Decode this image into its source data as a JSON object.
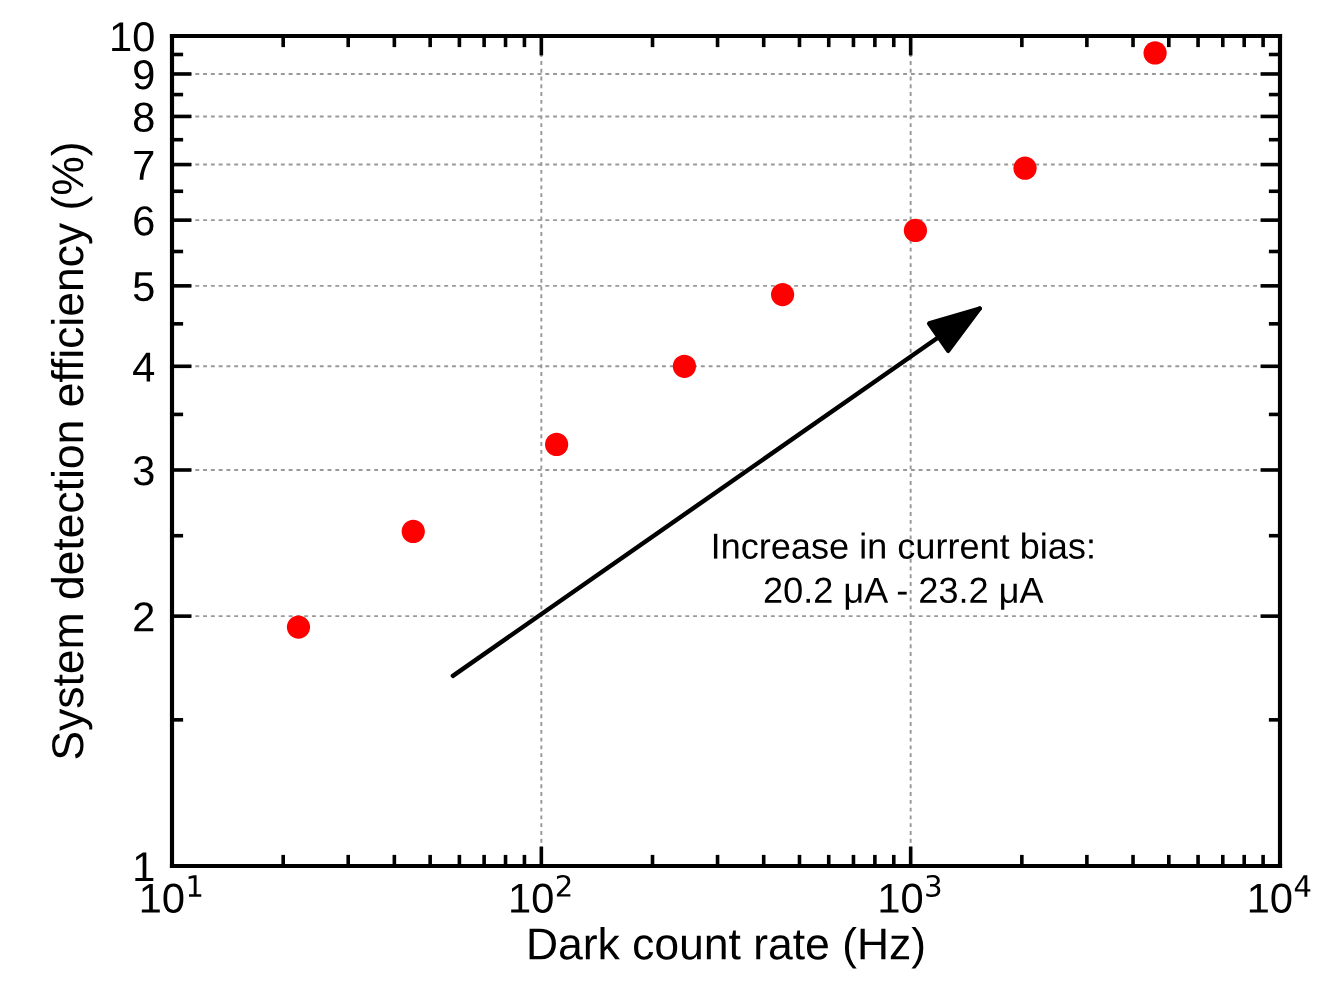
{
  "chart_data": {
    "type": "scatter",
    "xlabel": "Dark count rate (Hz)",
    "ylabel": "System detection efficiency (%)",
    "x": [
      22,
      45,
      110,
      244,
      450,
      1030,
      2040,
      4590
    ],
    "series": [
      {
        "color": "#ff0000",
        "values": [
          1.94,
          2.53,
          3.22,
          4.0,
          4.88,
          5.83,
          6.93,
          9.54
        ]
      }
    ],
    "log": "xy",
    "xlim": [
      10,
      10000
    ],
    "ylim": [
      1,
      10
    ],
    "xticks": [
      {
        "value": 10,
        "label": "10$^{1}$"
      },
      {
        "value": 100,
        "label": "10$^{2}$"
      },
      {
        "value": 1000,
        "label": "10$^{3}$"
      },
      {
        "value": 10000,
        "label": "10$^{4}$"
      }
    ],
    "yticks": [
      1,
      2,
      3,
      4,
      5,
      6,
      7,
      8,
      9,
      10
    ],
    "grid": true,
    "marker": "circle",
    "legend": false,
    "annotations": [
      "Increase in current bias:\n20.2 μA - 23.2 μA"
    ]
  }
}
